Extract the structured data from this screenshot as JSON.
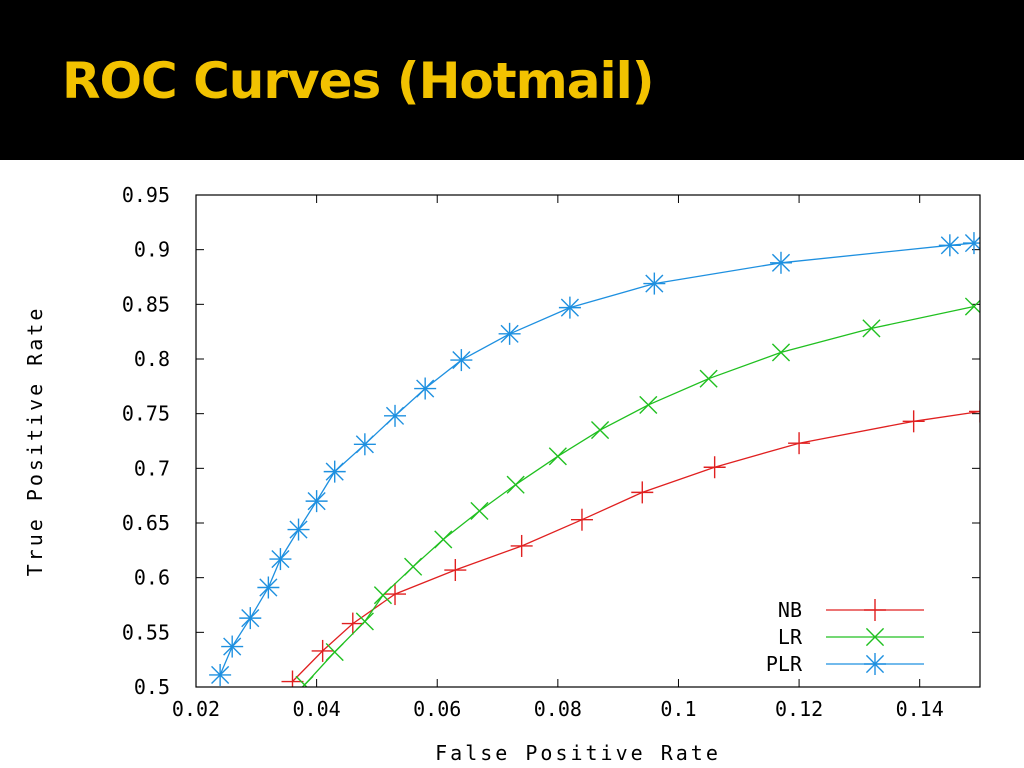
{
  "slide": {
    "title": "ROC Curves (Hotmail)"
  },
  "colors": {
    "background_title": "#000000",
    "title_text": "#f2c200",
    "plot_background": "#ffffff",
    "NB": "#e02020",
    "LR": "#20c020",
    "PLR": "#1e90e0"
  },
  "chart_data": {
    "type": "line",
    "title": "",
    "xlabel": "False Positive Rate",
    "ylabel": "True Positive Rate",
    "xlim": [
      0.02,
      0.15
    ],
    "ylim": [
      0.5,
      0.95
    ],
    "xticks": [
      "0.02",
      "0.04",
      "0.06",
      "0.08",
      "0.1",
      "0.12",
      "0.14"
    ],
    "xtick_values": [
      0.02,
      0.04,
      0.06,
      0.08,
      0.1,
      0.12,
      0.14
    ],
    "yticks": [
      "0.5",
      "0.55",
      "0.6",
      "0.65",
      "0.7",
      "0.75",
      "0.8",
      "0.85",
      "0.9",
      "0.95"
    ],
    "ytick_values": [
      0.5,
      0.55,
      0.6,
      0.65,
      0.7,
      0.75,
      0.8,
      0.85,
      0.9,
      0.95
    ],
    "grid": false,
    "legend_position": "bottom-right",
    "series": [
      {
        "name": "NB",
        "color": "#e02020",
        "marker": "plus",
        "points": [
          [
            0.036,
            0.505
          ],
          [
            0.041,
            0.533
          ],
          [
            0.046,
            0.558
          ],
          [
            0.053,
            0.585
          ],
          [
            0.063,
            0.607
          ],
          [
            0.074,
            0.629
          ],
          [
            0.084,
            0.653
          ],
          [
            0.094,
            0.678
          ],
          [
            0.106,
            0.701
          ],
          [
            0.12,
            0.723
          ],
          [
            0.139,
            0.743
          ],
          [
            0.15,
            0.752
          ]
        ]
      },
      {
        "name": "LR",
        "color": "#20c020",
        "marker": "cross",
        "points": [
          [
            0.038,
            0.502
          ],
          [
            0.043,
            0.532
          ],
          [
            0.048,
            0.56
          ],
          [
            0.051,
            0.584
          ],
          [
            0.056,
            0.61
          ],
          [
            0.061,
            0.635
          ],
          [
            0.067,
            0.661
          ],
          [
            0.073,
            0.685
          ],
          [
            0.08,
            0.711
          ],
          [
            0.087,
            0.735
          ],
          [
            0.095,
            0.758
          ],
          [
            0.105,
            0.782
          ],
          [
            0.117,
            0.806
          ],
          [
            0.132,
            0.828
          ],
          [
            0.149,
            0.848
          ]
        ]
      },
      {
        "name": "PLR",
        "color": "#1e90e0",
        "marker": "star",
        "points": [
          [
            0.024,
            0.511
          ],
          [
            0.026,
            0.537
          ],
          [
            0.029,
            0.563
          ],
          [
            0.032,
            0.591
          ],
          [
            0.034,
            0.617
          ],
          [
            0.037,
            0.644
          ],
          [
            0.04,
            0.67
          ],
          [
            0.043,
            0.697
          ],
          [
            0.048,
            0.722
          ],
          [
            0.053,
            0.748
          ],
          [
            0.058,
            0.773
          ],
          [
            0.064,
            0.799
          ],
          [
            0.072,
            0.823
          ],
          [
            0.082,
            0.847
          ],
          [
            0.096,
            0.869
          ],
          [
            0.117,
            0.888
          ],
          [
            0.145,
            0.904
          ],
          [
            0.149,
            0.906
          ]
        ]
      }
    ]
  }
}
